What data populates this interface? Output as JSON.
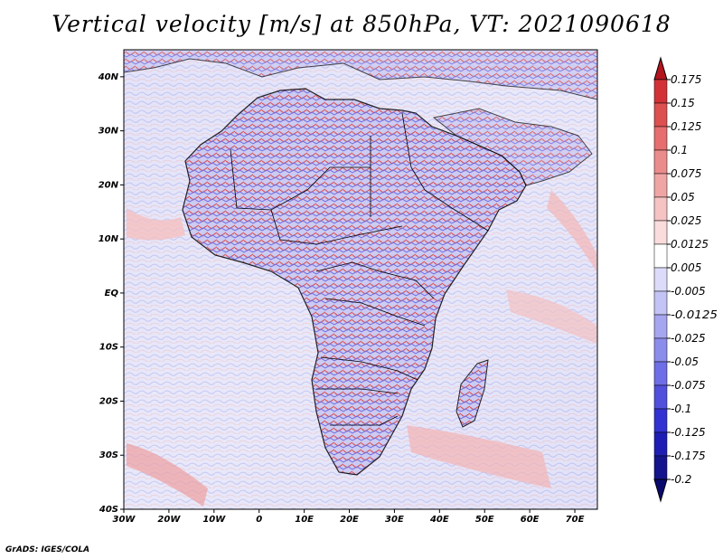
{
  "title": "Vertical velocity [m/s] at 850hPa, VT: 2021090618",
  "footer": "GrADS: IGES/COLA",
  "map": {
    "lon_range": [
      -30,
      75
    ],
    "lat_range": [
      -40,
      45
    ],
    "lat_ticks": [
      {
        "value": 40,
        "label": "40N"
      },
      {
        "value": 30,
        "label": "30N"
      },
      {
        "value": 20,
        "label": "20N"
      },
      {
        "value": 10,
        "label": "10N"
      },
      {
        "value": 0,
        "label": "EQ"
      },
      {
        "value": -10,
        "label": "10S"
      },
      {
        "value": -20,
        "label": "20S"
      },
      {
        "value": -30,
        "label": "30S"
      },
      {
        "value": -40,
        "label": "40S"
      }
    ],
    "lon_ticks": [
      {
        "value": -30,
        "label": "30W"
      },
      {
        "value": -20,
        "label": "20W"
      },
      {
        "value": -10,
        "label": "10W"
      },
      {
        "value": 0,
        "label": "0"
      },
      {
        "value": 10,
        "label": "10E"
      },
      {
        "value": 20,
        "label": "20E"
      },
      {
        "value": 30,
        "label": "30E"
      },
      {
        "value": 40,
        "label": "40E"
      },
      {
        "value": 50,
        "label": "50E"
      },
      {
        "value": 60,
        "label": "60E"
      },
      {
        "value": 70,
        "label": "70E"
      }
    ]
  },
  "colorbar": {
    "levels": [
      "0.175",
      "0.15",
      "0.125",
      "0.1",
      "0.075",
      "0.05",
      "0.025",
      "0.0125",
      "0.005",
      "-0.005",
      "-0.0125",
      "-0.025",
      "-0.05",
      "-0.075",
      "-0.1",
      "-0.125",
      "-0.175",
      "-0.2"
    ],
    "colors": [
      "#b4141e",
      "#d23237",
      "#dc5050",
      "#e66e6e",
      "#eb8c8c",
      "#f0a5a5",
      "#f5c3c3",
      "#fadcdc",
      "#ffffff",
      "#dcdcfa",
      "#c3c3f5",
      "#a5a5f0",
      "#8c8ceb",
      "#6e6ee6",
      "#5050dc",
      "#3232d2",
      "#1e1eb4",
      "#14148c",
      "#0a0a6e"
    ]
  }
}
